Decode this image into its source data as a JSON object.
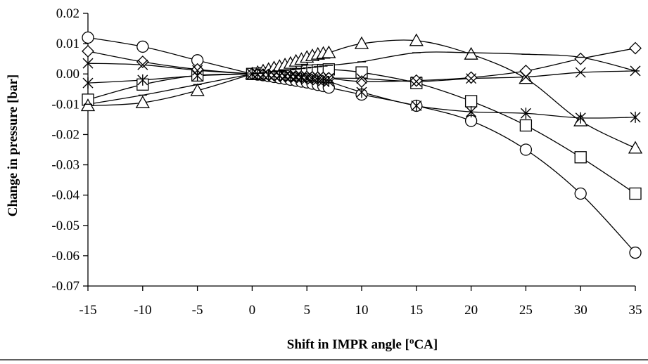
{
  "chart_data": {
    "type": "line",
    "xlabel_main": "Shift in IMPR angle [",
    "xlabel_sup": "o",
    "xlabel_end": "CA]",
    "ylabel": "Change in pressure [bar]",
    "xlim": [
      -15,
      35
    ],
    "ylim": [
      -0.07,
      0.02
    ],
    "x_ticks": [
      -15,
      -10,
      -5,
      0,
      5,
      10,
      15,
      20,
      25,
      30,
      35
    ],
    "y_ticks": [
      0.02,
      0.01,
      0.0,
      -0.01,
      -0.02,
      -0.03,
      -0.04,
      -0.05,
      -0.06,
      -0.07
    ],
    "y_tick_labels": [
      "0.02",
      "0.01",
      "0.00",
      "-0.01",
      "-0.02",
      "-0.03",
      "-0.04",
      "-0.05",
      "-0.06",
      "-0.07"
    ],
    "x": [
      -15,
      -10,
      -5,
      0,
      0.5,
      1,
      1.5,
      2,
      2.5,
      3,
      3.5,
      4,
      4.5,
      5,
      5.5,
      6,
      6.5,
      7,
      10,
      15,
      20,
      25,
      30,
      35
    ],
    "series": [
      {
        "marker": "circle",
        "values": [
          0.012,
          0.009,
          0.0045,
          0.0,
          -0.0002,
          -0.0004,
          -0.0007,
          -0.001,
          -0.0013,
          -0.0016,
          -0.0019,
          -0.0022,
          -0.0025,
          -0.0028,
          -0.0032,
          -0.0036,
          -0.004,
          -0.0045,
          -0.0068,
          -0.0105,
          -0.0155,
          -0.025,
          -0.0395,
          -0.059
        ]
      },
      {
        "marker": "square",
        "values": [
          -0.0085,
          -0.0035,
          -0.0005,
          0.0,
          0.0001,
          0.0002,
          0.0003,
          0.0004,
          0.0005,
          0.0006,
          0.0007,
          0.0008,
          0.0009,
          0.001,
          0.0011,
          0.0012,
          0.0013,
          0.0015,
          0.0005,
          -0.003,
          -0.009,
          -0.017,
          -0.0275,
          -0.0395
        ]
      },
      {
        "marker": "triangle",
        "values": [
          -0.0105,
          -0.0095,
          -0.0055,
          0.0,
          0.0005,
          0.001,
          0.0015,
          0.002,
          0.0025,
          0.003,
          0.0035,
          0.0042,
          0.0048,
          0.0055,
          0.006,
          0.0065,
          0.0068,
          0.007,
          0.01,
          0.011,
          0.0065,
          -0.0015,
          -0.0155,
          -0.0245
        ]
      },
      {
        "marker": "diamond",
        "values": [
          0.0075,
          0.004,
          0.0015,
          0.0,
          -0.0001,
          -0.0002,
          -0.0003,
          -0.0004,
          -0.0005,
          -0.0006,
          -0.0007,
          -0.0008,
          -0.0009,
          -0.001,
          -0.0011,
          -0.0012,
          -0.0013,
          -0.0014,
          -0.0025,
          -0.0022,
          -0.0012,
          0.001,
          0.005,
          0.0085
        ]
      },
      {
        "marker": "x",
        "values": [
          0.0035,
          0.003,
          0.0012,
          0.0,
          -0.0001,
          -0.0002,
          -0.0003,
          -0.0004,
          -0.0005,
          -0.0006,
          -0.0007,
          -0.0008,
          -0.0009,
          -0.001,
          -0.0011,
          -0.0012,
          -0.0013,
          -0.0014,
          -0.0015,
          -0.0025,
          -0.0015,
          -0.001,
          0.0005,
          0.001
        ]
      },
      {
        "marker": "asterisk",
        "values": [
          -0.003,
          -0.002,
          -0.0006,
          0.0,
          -0.0001,
          -0.0002,
          -0.0004,
          -0.0005,
          -0.0007,
          -0.0009,
          -0.001,
          -0.0012,
          -0.0014,
          -0.0016,
          -0.0018,
          -0.002,
          -0.0023,
          -0.0025,
          -0.006,
          -0.0105,
          -0.0125,
          -0.013,
          -0.0145,
          -0.0143
        ]
      },
      {
        "marker": "dash",
        "values": [
          -0.01,
          -0.007,
          -0.0035,
          0.0,
          0.0002,
          0.0004,
          0.0006,
          0.0008,
          0.001,
          0.0012,
          0.0014,
          0.0016,
          0.0018,
          0.002,
          0.0022,
          0.0024,
          0.0026,
          0.0028,
          0.004,
          0.007,
          0.007,
          0.0065,
          0.0055,
          0.001
        ]
      }
    ]
  }
}
